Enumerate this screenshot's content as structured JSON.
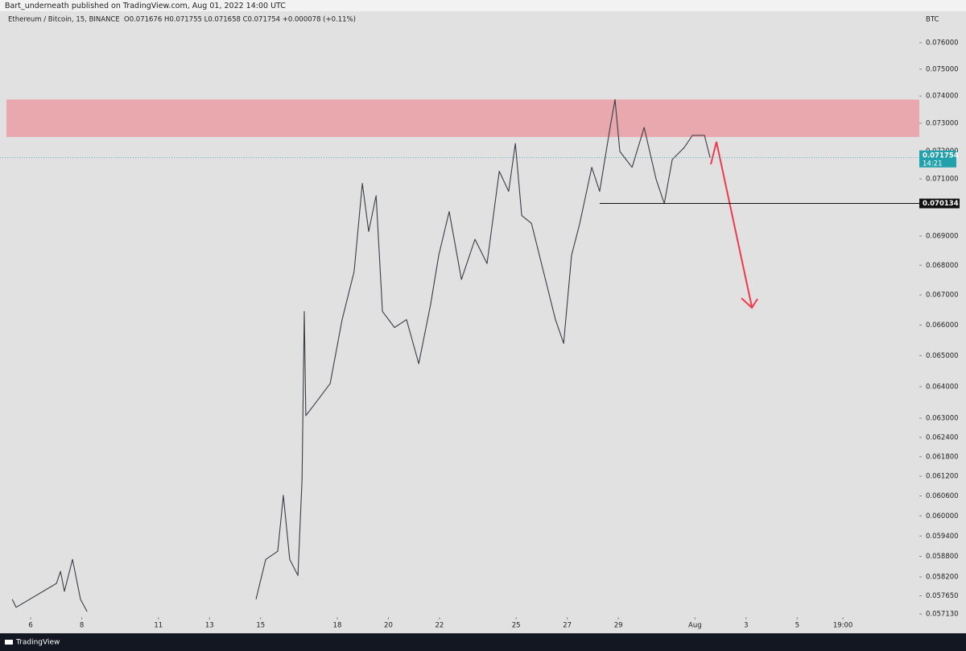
{
  "header": {
    "publisher": "Bart_underneath published on TradingView.com, Aug 01, 2022 14:00 UTC"
  },
  "footer": {
    "brand": "TradingView"
  },
  "chart_data": {
    "type": "line",
    "symbol": "Ethereum / Bitcoin, 15, BINANCE",
    "ohlc": "O0.071676 H0.071755 L0.071658 C0.071754 +0.000078 (+0.11%)",
    "currency": "BTC",
    "log_scale": true,
    "x": [
      5.28,
      5.43,
      7.01,
      7.17,
      7.32,
      7.64,
      7.95,
      8.21,
      11,
      14.82,
      15.2,
      15.67,
      15.89,
      16.14,
      16.46,
      16.62,
      16.71,
      16.77,
      17.25,
      17.72,
      18.19,
      18.66,
      18.98,
      19.23,
      19.52,
      19.77,
      20.24,
      20.71,
      21.19,
      21.66,
      21.97,
      22.38,
      22.86,
      23.39,
      23.86,
      24.34,
      24.71,
      24.97,
      25.22,
      25.6,
      26.07,
      26.54,
      26.86,
      27.17,
      27.49,
      27.96,
      28.27,
      28.68,
      28.87,
      29.06,
      29.54,
      30.01,
      30.48,
      30.8,
      31.11,
      31.58,
      31.9,
      32.37,
      32.59
    ],
    "series": [
      {
        "name": "ETHBTC",
        "color": "#3a3d45",
        "values": [
          0.05755,
          0.05732,
          0.05801,
          0.05836,
          0.05778,
          0.05871,
          0.05755,
          0.0572,
          null,
          0.05755,
          0.05871,
          0.05895,
          0.06062,
          0.05871,
          0.05824,
          0.0611,
          0.06645,
          0.06308,
          0.06359,
          0.0641,
          0.06618,
          0.06779,
          0.07084,
          0.06916,
          0.07041,
          0.06645,
          0.06592,
          0.06618,
          0.06474,
          0.06671,
          0.06834,
          0.06985,
          0.06752,
          0.06889,
          0.06806,
          0.07127,
          0.07056,
          0.07227,
          0.06971,
          0.06944,
          0.06779,
          0.06618,
          0.0654,
          0.06834,
          0.06944,
          0.07141,
          0.07056,
          0.07285,
          0.07387,
          0.07198,
          0.07141,
          0.07285,
          0.07098,
          0.07013,
          0.07169,
          0.07212,
          0.07256,
          0.07256,
          0.071754
        ]
      }
    ],
    "xlim": [
      4.8,
      40.78
    ],
    "xticks": [
      6,
      8,
      11,
      13,
      15,
      18,
      20,
      22,
      25,
      27,
      29,
      {
        "value": 32,
        "label": "Aug"
      },
      {
        "value": 34,
        "label": "3"
      },
      {
        "value": 36,
        "label": "5"
      },
      {
        "value": 37.79,
        "label": "19:00"
      }
    ],
    "ylim": [
      0.05704,
      0.0772
    ],
    "yticks": [
      {
        "value": 0.076,
        "label": "0.076000"
      },
      {
        "value": 0.075,
        "label": "0.075000"
      },
      {
        "value": 0.074,
        "label": "0.074000"
      },
      {
        "value": 0.073,
        "label": "0.073000"
      },
      {
        "value": 0.072,
        "label": "0.072000"
      },
      {
        "value": 0.071,
        "label": "0.071000"
      },
      {
        "value": 0.069,
        "label": "0.069000"
      },
      {
        "value": 0.068,
        "label": "0.068000"
      },
      {
        "value": 0.067,
        "label": "0.067000"
      },
      {
        "value": 0.066,
        "label": "0.066000"
      },
      {
        "value": 0.065,
        "label": "0.065000"
      },
      {
        "value": 0.064,
        "label": "0.064000"
      },
      {
        "value": 0.063,
        "label": "0.063000"
      },
      {
        "value": 0.0624,
        "label": "0.062400"
      },
      {
        "value": 0.0618,
        "label": "0.061800"
      },
      {
        "value": 0.0612,
        "label": "0.061200"
      },
      {
        "value": 0.0606,
        "label": "0.060600"
      },
      {
        "value": 0.06,
        "label": "0.060000"
      },
      {
        "value": 0.0594,
        "label": "0.059400"
      },
      {
        "value": 0.0588,
        "label": "0.058800"
      },
      {
        "value": 0.0582,
        "label": "0.058200"
      },
      {
        "value": 0.05765,
        "label": "0.057650"
      },
      {
        "value": 0.05713,
        "label": "0.057130"
      }
    ],
    "zone": {
      "color": "#e8a8ad",
      "ylim": [
        0.0725,
        0.07387
      ]
    },
    "support": {
      "value": 0.070134,
      "x": [
        28.27,
        40.78
      ]
    },
    "last_price": {
      "value": 0.071754,
      "countdown": "14:21",
      "color": "#22a1ab"
    }
  }
}
